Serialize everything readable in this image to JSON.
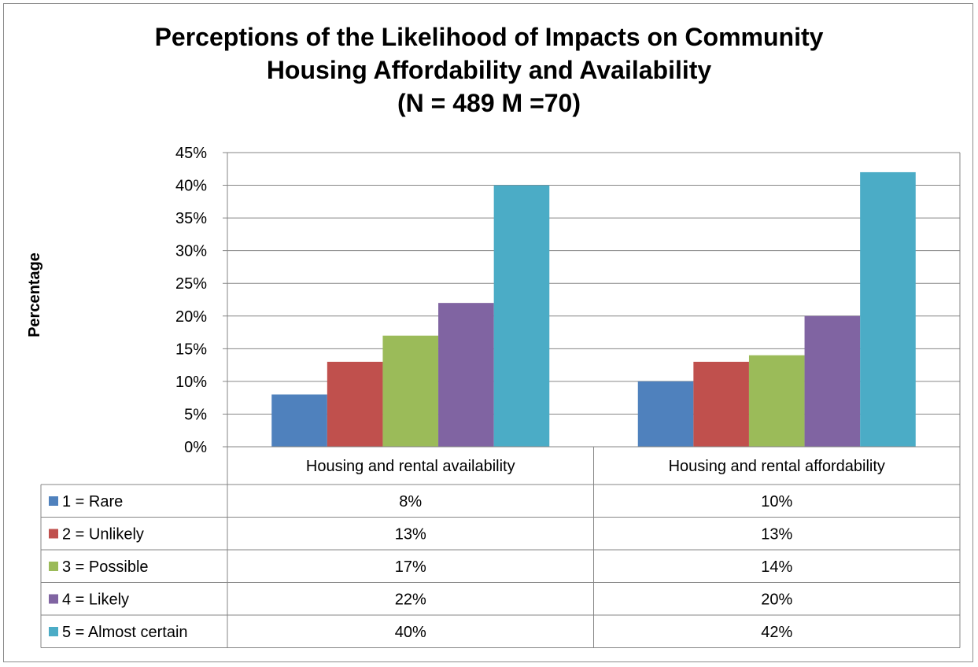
{
  "chart_data": {
    "type": "bar",
    "title_lines": [
      "Perceptions of the Likelihood of Impacts on Community",
      "Housing Affordability and Availability",
      "(N = 489 M =70)"
    ],
    "xlabel": "",
    "ylabel": "Percentage",
    "ylim": [
      0,
      45
    ],
    "y_ticks": [
      "0%",
      "5%",
      "10%",
      "15%",
      "20%",
      "25%",
      "30%",
      "35%",
      "40%",
      "45%"
    ],
    "grid": true,
    "legend": "data-table",
    "categories": [
      "Housing and rental availability",
      "Housing and rental affordability"
    ],
    "series": [
      {
        "name": "1 = Rare",
        "values": [
          8,
          10
        ],
        "labels": [
          "8%",
          "10%"
        ],
        "color": "#4F81BD"
      },
      {
        "name": "2 = Unlikely",
        "values": [
          13,
          13
        ],
        "labels": [
          "13%",
          "13%"
        ],
        "color": "#C0504D"
      },
      {
        "name": "3 = Possible",
        "values": [
          17,
          14
        ],
        "labels": [
          "17%",
          "14%"
        ],
        "color": "#9BBB59"
      },
      {
        "name": "4 = Likely",
        "values": [
          22,
          20
        ],
        "labels": [
          "22%",
          "20%"
        ],
        "color": "#8064A2"
      },
      {
        "name": "5 = Almost certain",
        "values": [
          40,
          42
        ],
        "labels": [
          "40%",
          "42%"
        ],
        "color": "#4BACC6"
      }
    ]
  }
}
